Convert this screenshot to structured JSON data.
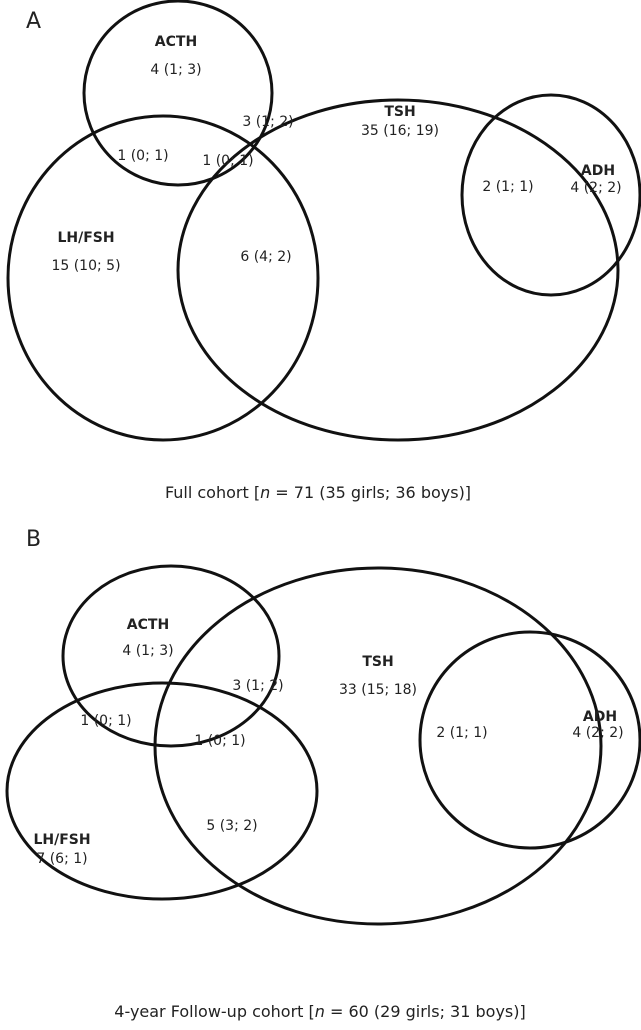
{
  "panels": [
    {
      "label": "A",
      "sets": [
        "ACTH",
        "TSH",
        "LH/FSH",
        "ADH"
      ],
      "regions": [
        "4 (1; 3)",
        "35 (16; 19)",
        "15 (10; 5)",
        "4 (2; 2)",
        "3 (1; 2)",
        "1 (0; 1)",
        "1 (0; 1)",
        "6 (4; 2)",
        "2 (1; 1)"
      ],
      "caption": {
        "before": "Full cohort [",
        "italic": "n",
        "after": " = 71 (35 girls; 36 boys)]"
      }
    },
    {
      "label": "B",
      "sets": [
        "ACTH",
        "TSH",
        "LH/FSH",
        "ADH"
      ],
      "regions": [
        "4 (1; 3)",
        "33 (15; 18)",
        "7 (6; 1)",
        "4 (2; 2)",
        "3 (1; 2)",
        "1 (0; 1)",
        "1 (0; 1)",
        "5 (3; 2)",
        "2 (1; 1)"
      ],
      "caption": {
        "before": "4-year Follow-up cohort [",
        "italic": "n",
        "after": " = 60 (29 girls; 31 boys)]"
      }
    }
  ]
}
